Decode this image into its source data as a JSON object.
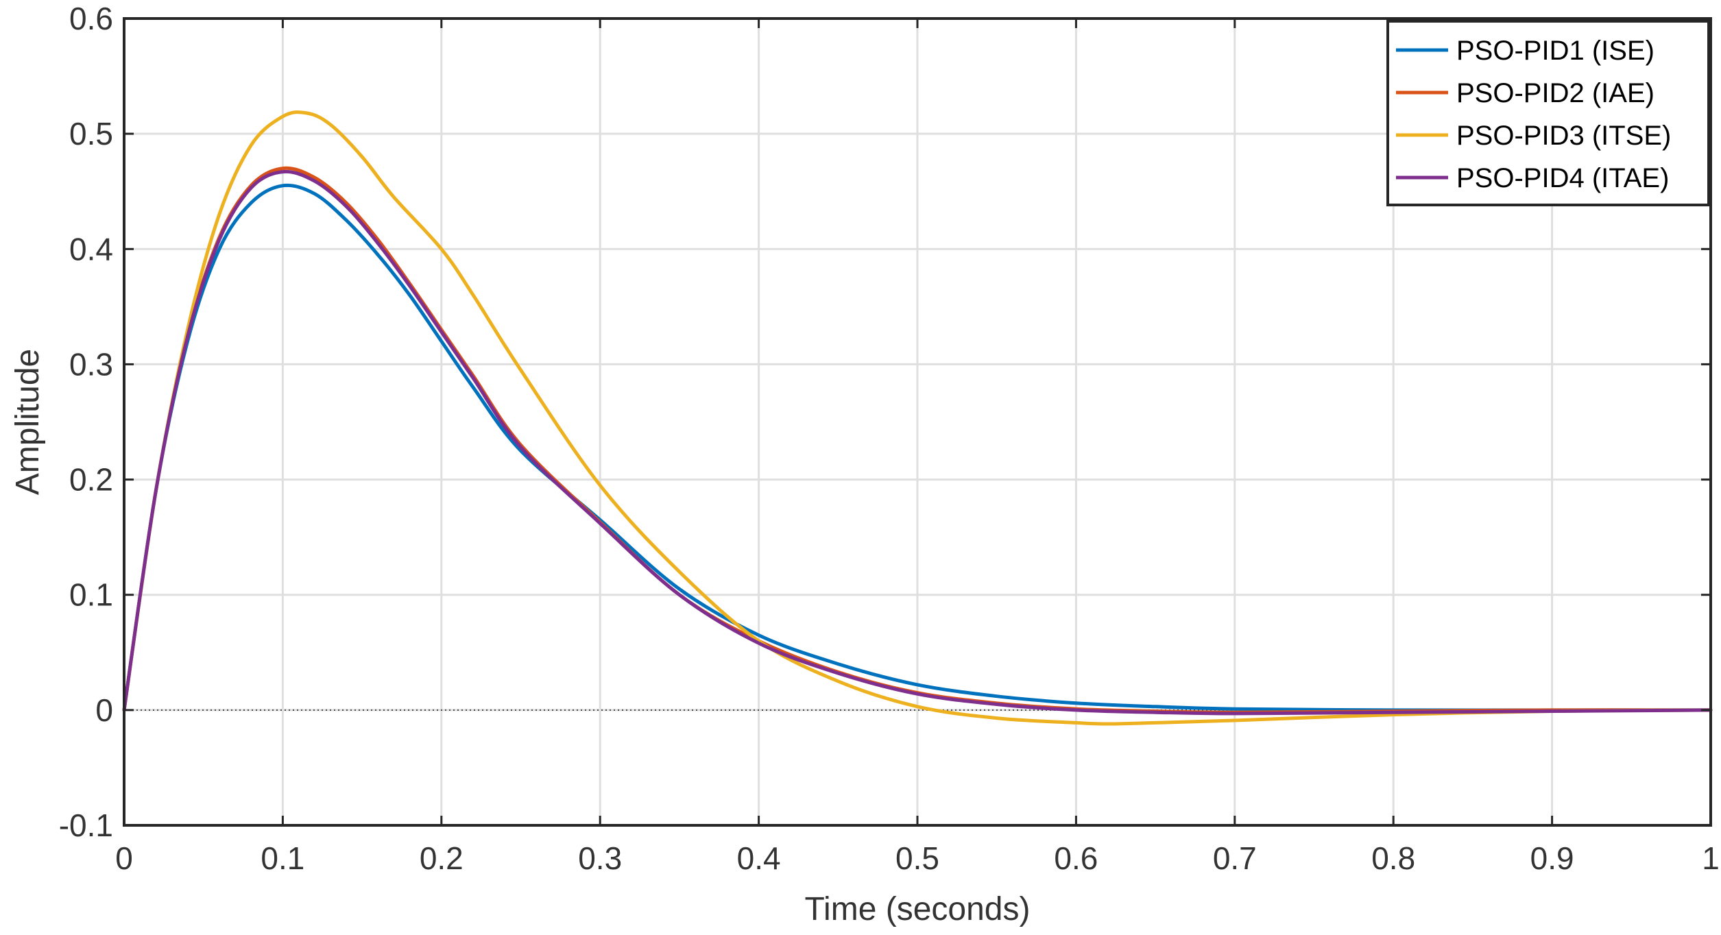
{
  "chart_data": {
    "type": "line",
    "title": "",
    "xlabel": "Time (seconds)",
    "ylabel": "Amplitude",
    "xlim": [
      0,
      1
    ],
    "ylim": [
      -0.1,
      0.6
    ],
    "xticks": [
      "0",
      "0.1",
      "0.2",
      "0.3",
      "0.4",
      "0.5",
      "0.6",
      "0.7",
      "0.8",
      "0.9",
      "1"
    ],
    "yticks": [
      "-0.1",
      "0",
      "0.1",
      "0.2",
      "0.3",
      "0.4",
      "0.5",
      "0.6"
    ],
    "grid": true,
    "legend_position": "top-right",
    "reference_line": 0,
    "series": [
      {
        "name": "PSO-PID1 (ISE)",
        "color": "#0072BD",
        "x": [
          0,
          0.02,
          0.04,
          0.06,
          0.08,
          0.1,
          0.12,
          0.14,
          0.16,
          0.18,
          0.2,
          0.22,
          0.25,
          0.3,
          0.35,
          0.4,
          0.45,
          0.5,
          0.55,
          0.6,
          0.65,
          0.7,
          0.8,
          0.9,
          1.0
        ],
        "y": [
          0,
          0.19,
          0.32,
          0.4,
          0.44,
          0.455,
          0.448,
          0.425,
          0.395,
          0.36,
          0.32,
          0.28,
          0.225,
          0.165,
          0.105,
          0.065,
          0.04,
          0.022,
          0.012,
          0.006,
          0.003,
          0.001,
          0.0,
          0.0,
          0.0
        ]
      },
      {
        "name": "PSO-PID2 (IAE)",
        "color": "#D95319",
        "x": [
          0,
          0.02,
          0.04,
          0.06,
          0.08,
          0.1,
          0.12,
          0.14,
          0.16,
          0.18,
          0.2,
          0.22,
          0.25,
          0.3,
          0.35,
          0.4,
          0.45,
          0.5,
          0.55,
          0.6,
          0.65,
          0.7,
          0.8,
          0.9,
          1.0
        ],
        "y": [
          0,
          0.19,
          0.325,
          0.41,
          0.455,
          0.47,
          0.462,
          0.44,
          0.408,
          0.37,
          0.33,
          0.29,
          0.23,
          0.163,
          0.1,
          0.06,
          0.033,
          0.015,
          0.006,
          0.001,
          -0.001,
          -0.002,
          -0.001,
          0.0,
          0.0
        ]
      },
      {
        "name": "PSO-PID3 (ITSE)",
        "color": "#EDB120",
        "x": [
          0,
          0.02,
          0.04,
          0.06,
          0.08,
          0.1,
          0.115,
          0.13,
          0.15,
          0.17,
          0.2,
          0.22,
          0.25,
          0.3,
          0.35,
          0.4,
          0.45,
          0.5,
          0.55,
          0.6,
          0.62,
          0.65,
          0.7,
          0.8,
          0.9,
          1.0
        ],
        "y": [
          0,
          0.19,
          0.33,
          0.43,
          0.49,
          0.515,
          0.518,
          0.508,
          0.48,
          0.445,
          0.4,
          0.36,
          0.295,
          0.195,
          0.12,
          0.06,
          0.025,
          0.003,
          -0.007,
          -0.011,
          -0.012,
          -0.011,
          -0.009,
          -0.004,
          -0.001,
          0.0
        ]
      },
      {
        "name": "PSO-PID4 (ITAE)",
        "color": "#7E2F8E",
        "x": [
          0,
          0.02,
          0.04,
          0.06,
          0.08,
          0.1,
          0.12,
          0.14,
          0.16,
          0.18,
          0.2,
          0.22,
          0.25,
          0.3,
          0.35,
          0.4,
          0.45,
          0.5,
          0.55,
          0.6,
          0.65,
          0.7,
          0.8,
          0.9,
          1.0
        ],
        "y": [
          0,
          0.19,
          0.324,
          0.408,
          0.453,
          0.467,
          0.459,
          0.437,
          0.405,
          0.368,
          0.328,
          0.288,
          0.228,
          0.162,
          0.1,
          0.058,
          0.032,
          0.014,
          0.005,
          0.0,
          -0.002,
          -0.003,
          -0.002,
          -0.001,
          0.0
        ]
      }
    ]
  }
}
